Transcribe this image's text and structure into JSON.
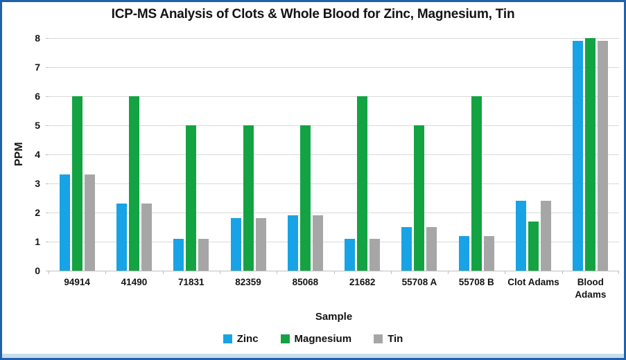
{
  "title": "ICP-MS Analysis of Clots & Whole Blood for Zinc, Magnesium, Tin",
  "colors": {
    "zinc": "#17A3E5",
    "magnesium": "#14A343",
    "tin": "#A6A6A6",
    "gridline": "#D9D9D9",
    "axis": "#BFBFBF",
    "frame_border": "#2061AB",
    "bottom_strip": "#C9DDF0",
    "text": "#131313"
  },
  "chart_data": {
    "type": "bar",
    "title": "ICP-MS Analysis of Clots & Whole Blood for Zinc, Magnesium, Tin",
    "categories": [
      "94914",
      "41490",
      "71831",
      "82359",
      "85068",
      "21682",
      "55708 A",
      "55708 B",
      "Clot Adams",
      "Blood Adams"
    ],
    "categories_display": [
      "94914",
      "41490",
      "71831",
      "82359",
      "85068",
      "21682",
      "55708 A",
      "55708 B",
      "Clot Adams",
      "Blood\nAdams"
    ],
    "series": [
      {
        "name": "Zinc",
        "color": "#17A3E5",
        "values": [
          3.3,
          2.3,
          1.1,
          1.8,
          1.9,
          1.1,
          1.5,
          1.2,
          2.4,
          7.9
        ]
      },
      {
        "name": "Magnesium",
        "color": "#14A343",
        "values": [
          6,
          6,
          5,
          5,
          5,
          6,
          5,
          6,
          1.7,
          8
        ]
      },
      {
        "name": "Tin",
        "color": "#A6A6A6",
        "values": [
          3.3,
          2.3,
          1.1,
          1.8,
          1.9,
          1.1,
          1.5,
          1.2,
          2.4,
          7.9
        ]
      }
    ],
    "xlabel": "Sample",
    "ylabel": "PPM",
    "ylim": [
      0,
      8
    ],
    "ytick_step": 1,
    "yticks": [
      0,
      1,
      2,
      3,
      4,
      5,
      6,
      7,
      8
    ],
    "grid": true,
    "legend_position": "bottom"
  }
}
